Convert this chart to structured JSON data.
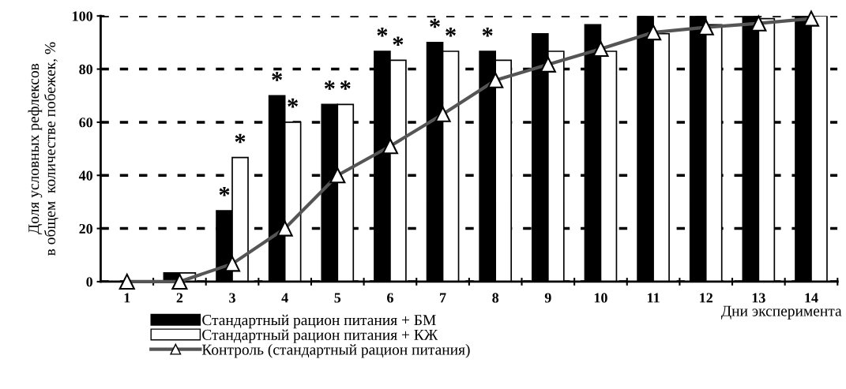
{
  "chart_data": {
    "type": "bar",
    "ylabel": "Доля условных рефлексов\nв общем  количестве побежек, %",
    "xlabel": "Дни эксперимента",
    "categories": [
      "1",
      "2",
      "3",
      "4",
      "5",
      "6",
      "7",
      "8",
      "9",
      "10",
      "11",
      "12",
      "13",
      "14"
    ],
    "series": [
      {
        "name": "Стандартный рацион питания + БМ",
        "color": "#000000",
        "values": [
          0,
          3.3,
          26.7,
          70,
          66.7,
          86.7,
          90,
          86.7,
          93.3,
          96.7,
          100,
          100,
          100,
          100
        ]
      },
      {
        "name": "Стандартный рацион питания + КЖ",
        "color": "#ffffff",
        "values": [
          0,
          3.3,
          46.7,
          60,
          66.7,
          83.3,
          86.7,
          83.3,
          86.7,
          86.7,
          93.3,
          96.7,
          99,
          100
        ]
      },
      {
        "name": "Контроль (стандартный рацион питания)",
        "color": "#555555",
        "type": "line",
        "marker": "triangle",
        "values": [
          0,
          0,
          6.7,
          20,
          40,
          51,
          63,
          75.8,
          81.7,
          87.6,
          93.8,
          95.7,
          97.2,
          99
        ]
      }
    ],
    "ylim": [
      0,
      100
    ],
    "yticks": [
      0,
      20,
      40,
      60,
      80,
      100
    ],
    "grid": "y",
    "legend": "bottom left",
    "annotations": [
      {
        "text": "*",
        "x": "3",
        "y": 26.7
      },
      {
        "text": "*",
        "x": "3",
        "y": 46.7
      },
      {
        "text": "*",
        "x": "4",
        "y": 70
      },
      {
        "text": "*",
        "x": "4",
        "y": 60
      },
      {
        "text": "*",
        "x": "5",
        "y": 66.7
      },
      {
        "text": "*",
        "x": "5",
        "y": 66.7
      },
      {
        "text": "*",
        "x": "6",
        "y": 86.7
      },
      {
        "text": "*",
        "x": "6",
        "y": 83.3
      },
      {
        "text": "*",
        "x": "7",
        "y": 90
      },
      {
        "text": "*",
        "x": "7",
        "y": 86.7
      },
      {
        "text": "*",
        "x": "8",
        "y": 86.7
      }
    ]
  }
}
